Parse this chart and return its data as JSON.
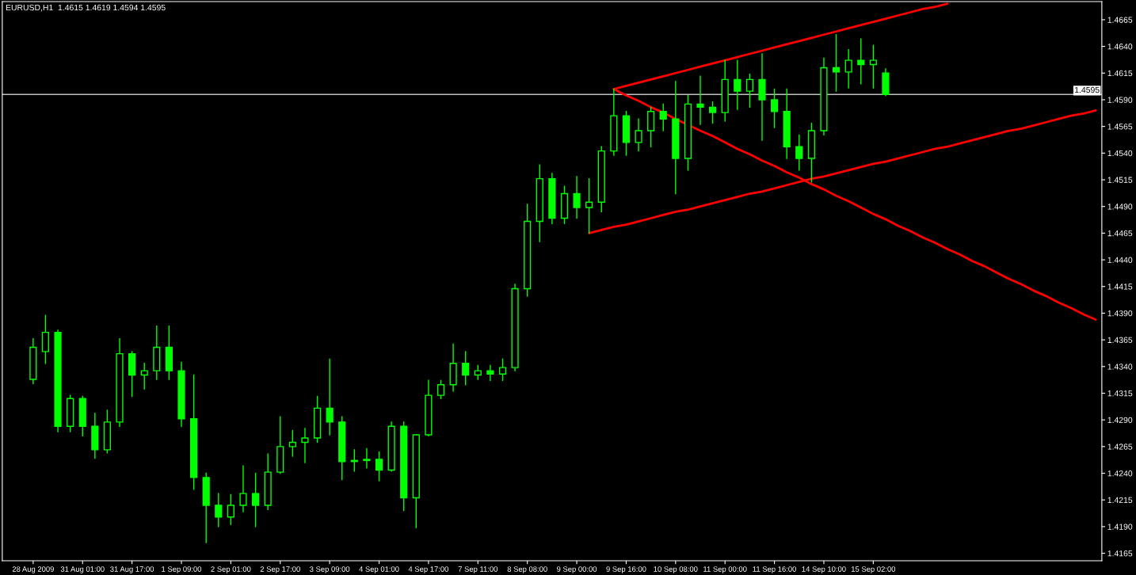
{
  "chart_data": {
    "type": "candlestick",
    "title": "EURUSD,H1  1.4615 1.4619 1.4594 1.4595",
    "color": "#00ff00",
    "categories": [
      "28 Aug 2009",
      null,
      null,
      null,
      "31 Aug 01:00",
      null,
      null,
      null,
      "31 Aug 17:00",
      null,
      null,
      null,
      "1 Sep 09:00",
      null,
      null,
      null,
      "2 Sep 01:00",
      null,
      null,
      null,
      "2 Sep 17:00",
      null,
      null,
      null,
      "3 Sep 09:00",
      null,
      null,
      null,
      "4 Sep 01:00",
      null,
      null,
      null,
      "4 Sep 17:00",
      null,
      null,
      null,
      "7 Sep 11:00",
      null,
      null,
      null,
      "8 Sep 08:00",
      null,
      null,
      null,
      "9 Sep 00:00",
      null,
      null,
      null,
      "9 Sep 16:00",
      null,
      null,
      null,
      "10 Sep 08:00",
      null,
      null,
      null,
      "11 Sep 00:00",
      null,
      null,
      null,
      "11 Sep 16:00",
      null,
      null,
      null,
      "14 Sep 10:00",
      null,
      null,
      null,
      "15 Sep 02:00",
      null,
      null,
      null,
      null,
      null,
      null,
      null,
      null,
      null,
      null,
      null,
      null,
      null,
      null,
      null,
      null,
      null,
      null
    ],
    "ohlc": [
      [
        1.4328,
        1.4366,
        1.4324,
        1.4358
      ],
      [
        1.4354,
        1.4388,
        1.4343,
        1.4372
      ],
      [
        1.4372,
        1.4374,
        1.4279,
        1.4284
      ],
      [
        1.4284,
        1.4313,
        1.4279,
        1.431
      ],
      [
        1.431,
        1.4312,
        1.4275,
        1.4284
      ],
      [
        1.4284,
        1.4296,
        1.4254,
        1.4262
      ],
      [
        1.4262,
        1.4299,
        1.4259,
        1.4288
      ],
      [
        1.4288,
        1.4366,
        1.4284,
        1.4352
      ],
      [
        1.4352,
        1.4354,
        1.4312,
        1.4332
      ],
      [
        1.4332,
        1.4343,
        1.4319,
        1.4336
      ],
      [
        1.4336,
        1.4378,
        1.4328,
        1.4358
      ],
      [
        1.4358,
        1.4378,
        1.4328,
        1.4336
      ],
      [
        1.4336,
        1.4344,
        1.4284,
        1.4291
      ],
      [
        1.4291,
        1.4332,
        1.4225,
        1.4236
      ],
      [
        1.4236,
        1.424,
        1.4175,
        1.421
      ],
      [
        1.421,
        1.4221,
        1.419,
        1.4199
      ],
      [
        1.4199,
        1.422,
        1.4192,
        1.421
      ],
      [
        1.421,
        1.4247,
        1.4204,
        1.4221
      ],
      [
        1.4221,
        1.424,
        1.419,
        1.421
      ],
      [
        1.421,
        1.4258,
        1.4206,
        1.4241
      ],
      [
        1.4241,
        1.4293,
        1.424,
        1.4265
      ],
      [
        1.4265,
        1.428,
        1.4256,
        1.4269
      ],
      [
        1.4269,
        1.4282,
        1.425,
        1.4273
      ],
      [
        1.4273,
        1.4312,
        1.4269,
        1.4301
      ],
      [
        1.4301,
        1.4347,
        1.4276,
        1.4288
      ],
      [
        1.4288,
        1.4293,
        1.4234,
        1.4251
      ],
      [
        1.4251,
        1.4262,
        1.4242,
        1.4252
      ],
      [
        1.4252,
        1.4263,
        1.4245,
        1.4253
      ],
      [
        1.4253,
        1.426,
        1.4233,
        1.4243
      ],
      [
        1.4243,
        1.4288,
        1.4242,
        1.4284
      ],
      [
        1.4284,
        1.4288,
        1.4205,
        1.4217
      ],
      [
        1.4217,
        1.4276,
        1.4189,
        1.4276
      ],
      [
        1.4276,
        1.4327,
        1.4275,
        1.4313
      ],
      [
        1.4313,
        1.4327,
        1.431,
        1.4323
      ],
      [
        1.4323,
        1.4361,
        1.4317,
        1.4343
      ],
      [
        1.4343,
        1.4354,
        1.4323,
        1.4332
      ],
      [
        1.4332,
        1.4341,
        1.4328,
        1.4336
      ],
      [
        1.4336,
        1.4341,
        1.4327,
        1.4333
      ],
      [
        1.4333,
        1.4347,
        1.4327,
        1.4339
      ],
      [
        1.4339,
        1.4417,
        1.4336,
        1.4413
      ],
      [
        1.4413,
        1.4492,
        1.4406,
        1.4476
      ],
      [
        1.4476,
        1.4529,
        1.4457,
        1.4516
      ],
      [
        1.4516,
        1.4521,
        1.4474,
        1.4479
      ],
      [
        1.4479,
        1.4509,
        1.4474,
        1.4502
      ],
      [
        1.4502,
        1.4518,
        1.4479,
        1.4489
      ],
      [
        1.4489,
        1.4516,
        1.4465,
        1.4494
      ],
      [
        1.4494,
        1.4546,
        1.4485,
        1.4542
      ],
      [
        1.4542,
        1.46,
        1.4538,
        1.4575
      ],
      [
        1.4575,
        1.4579,
        1.4538,
        1.455
      ],
      [
        1.455,
        1.4572,
        1.4542,
        1.4561
      ],
      [
        1.4561,
        1.4583,
        1.4546,
        1.4579
      ],
      [
        1.4579,
        1.4586,
        1.4561,
        1.4572
      ],
      [
        1.4572,
        1.4607,
        1.4502,
        1.4535
      ],
      [
        1.4535,
        1.4594,
        1.4524,
        1.4586
      ],
      [
        1.4586,
        1.4612,
        1.4567,
        1.4583
      ],
      [
        1.4583,
        1.4588,
        1.4568,
        1.4578
      ],
      [
        1.4578,
        1.4627,
        1.457,
        1.4609
      ],
      [
        1.4609,
        1.4627,
        1.4581,
        1.4598
      ],
      [
        1.4598,
        1.4614,
        1.4583,
        1.4609
      ],
      [
        1.4609,
        1.4633,
        1.4552,
        1.459
      ],
      [
        1.459,
        1.46,
        1.4564,
        1.4579
      ],
      [
        1.4579,
        1.46,
        1.4535,
        1.4546
      ],
      [
        1.4546,
        1.4557,
        1.4524,
        1.4535
      ],
      [
        1.4535,
        1.4568,
        1.4513,
        1.4561
      ],
      [
        1.4561,
        1.4629,
        1.4557,
        1.462
      ],
      [
        1.462,
        1.4651,
        1.4598,
        1.4616
      ],
      [
        1.4616,
        1.4637,
        1.4601,
        1.4627
      ],
      [
        1.4627,
        1.4647,
        1.4605,
        1.4623
      ],
      [
        1.4623,
        1.4641,
        1.4601,
        1.4627
      ],
      [
        1.4615,
        1.4619,
        1.4594,
        1.4595
      ],
      null,
      null,
      null,
      null,
      null,
      null,
      null,
      null,
      null,
      null,
      null,
      null,
      null,
      null,
      null,
      null,
      null
    ],
    "series": [
      {
        "type": "line",
        "color": "#ff0000",
        "values": [
          null,
          null,
          null,
          null,
          null,
          null,
          null,
          null,
          null,
          null,
          null,
          null,
          null,
          null,
          null,
          null,
          null,
          null,
          null,
          null,
          null,
          null,
          null,
          null,
          null,
          null,
          null,
          null,
          null,
          null,
          null,
          null,
          null,
          null,
          null,
          null,
          null,
          null,
          null,
          null,
          null,
          null,
          null,
          null,
          null,
          null,
          null,
          1.46,
          1.4603,
          1.4606,
          1.4609,
          1.4612,
          1.4615,
          1.4618,
          1.4621,
          1.4624,
          1.4627,
          1.463,
          1.4633,
          1.4636,
          1.4639,
          1.4642,
          1.4645,
          1.4648,
          1.4651,
          1.4654,
          1.4657,
          1.466,
          1.4663,
          1.4666,
          1.4669,
          1.4672,
          1.4675,
          1.4677,
          1.468,
          null,
          null,
          null,
          null,
          null,
          null,
          null,
          null,
          null,
          null,
          null,
          null
        ]
      },
      {
        "type": "line",
        "color": "#ff0000",
        "values": [
          null,
          null,
          null,
          null,
          null,
          null,
          null,
          null,
          null,
          null,
          null,
          null,
          null,
          null,
          null,
          null,
          null,
          null,
          null,
          null,
          null,
          null,
          null,
          null,
          null,
          null,
          null,
          null,
          null,
          null,
          null,
          null,
          null,
          null,
          null,
          null,
          null,
          null,
          null,
          null,
          null,
          null,
          null,
          null,
          null,
          1.4465,
          1.4468,
          1.4471,
          1.4473,
          1.4476,
          1.4479,
          1.4482,
          1.4485,
          1.4487,
          1.449,
          1.4493,
          1.4496,
          1.4499,
          1.4502,
          1.4504,
          1.4507,
          1.451,
          1.4513,
          1.4516,
          1.4518,
          1.4521,
          1.4524,
          1.4527,
          1.453,
          1.4532,
          1.4535,
          1.4538,
          1.4541,
          1.4544,
          1.4546,
          1.4549,
          1.4552,
          1.4555,
          1.4558,
          1.4561,
          1.4563,
          1.4566,
          1.4569,
          1.4572,
          1.4575,
          1.4577,
          1.458
        ]
      },
      {
        "type": "line",
        "color": "#ff0000",
        "values": [
          null,
          null,
          null,
          null,
          null,
          null,
          null,
          null,
          null,
          null,
          null,
          null,
          null,
          null,
          null,
          null,
          null,
          null,
          null,
          null,
          null,
          null,
          null,
          null,
          null,
          null,
          null,
          null,
          null,
          null,
          null,
          null,
          null,
          null,
          null,
          null,
          null,
          null,
          null,
          null,
          null,
          null,
          null,
          null,
          null,
          null,
          null,
          1.46,
          1.4594,
          1.4589,
          1.4583,
          1.4578,
          1.4572,
          null,
          1.4561,
          1.4556,
          1.455,
          1.4544,
          1.4539,
          1.4533,
          1.4528,
          1.4522,
          1.4517,
          1.4511,
          1.4506,
          1.45,
          1.4495,
          1.4489,
          1.4483,
          1.4478,
          1.4472,
          1.4467,
          1.4461,
          1.4456,
          1.445,
          1.4445,
          1.4439,
          1.4434,
          1.4428,
          1.4422,
          1.4417,
          1.4411,
          1.4406,
          1.44,
          1.4395,
          1.4389,
          1.4384
        ]
      }
    ],
    "ylim": [
      1.4158,
      1.4682
    ],
    "yticks": [
      1.4165,
      {
        "value": 1.419,
        "label": "1.4190"
      },
      1.4215,
      {
        "value": 1.424,
        "label": "1.4240"
      },
      1.4265,
      {
        "value": 1.429,
        "label": "1.4290"
      },
      1.4315,
      {
        "value": 1.434,
        "label": "1.4340"
      },
      1.4365,
      {
        "value": 1.439,
        "label": "1.4390"
      },
      1.4415,
      {
        "value": 1.444,
        "label": "1.4440"
      },
      1.4465,
      {
        "value": 1.449,
        "label": "1.4490"
      },
      1.4515,
      {
        "value": 1.454,
        "label": "1.4540"
      },
      1.4565,
      {
        "value": 1.459,
        "label": "1.4590"
      },
      1.4615,
      {
        "value": 1.464,
        "label": "1.4640"
      },
      1.4665
    ],
    "ref_lines": [
      {
        "axis": "y",
        "value": 1.4595,
        "label": "1.4595",
        "color": "#c0c0c0",
        "line_style": "solid"
      }
    ]
  }
}
